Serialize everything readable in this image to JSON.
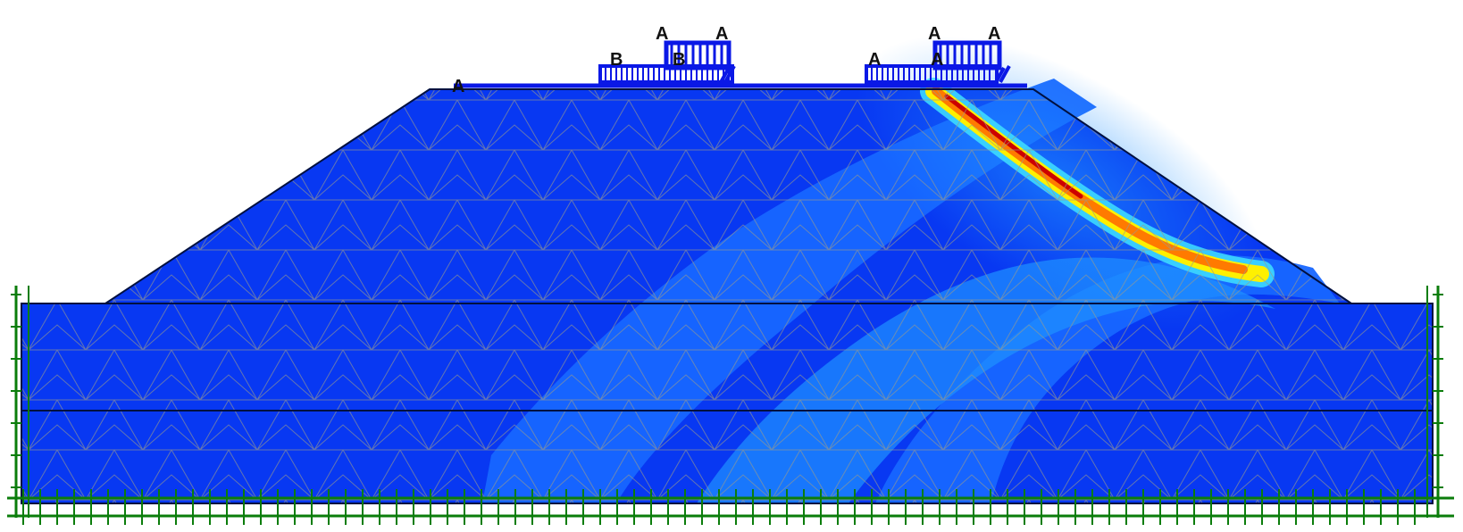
{
  "diagram": {
    "labels": {
      "load_a_left": "A",
      "load_a_1": "A",
      "load_a_2": "A",
      "load_b_1": "B",
      "load_b_2": "B",
      "load_a_3": "A",
      "load_a_4": "A",
      "load_a_5": "A",
      "load_a_6": "A"
    },
    "colors": {
      "background": "#ffffff",
      "soil_fill": "#0838f2",
      "soil_light": "#1766ff",
      "soil_mid": "#1e90ff",
      "mesh_lines": "#9a9a8a",
      "outline": "#001040",
      "load_blue": "#0a18e6",
      "boundary_green": "#0b7d0b",
      "shear_band_red": "#cc0000",
      "shear_band_orange": "#ff8a00",
      "shear_band_yellow": "#fff000",
      "shear_band_cyan": "#40e0ff"
    },
    "icons": {
      "distributed_load": "distributed-load-icon",
      "fixity": "fixity-icon"
    }
  }
}
